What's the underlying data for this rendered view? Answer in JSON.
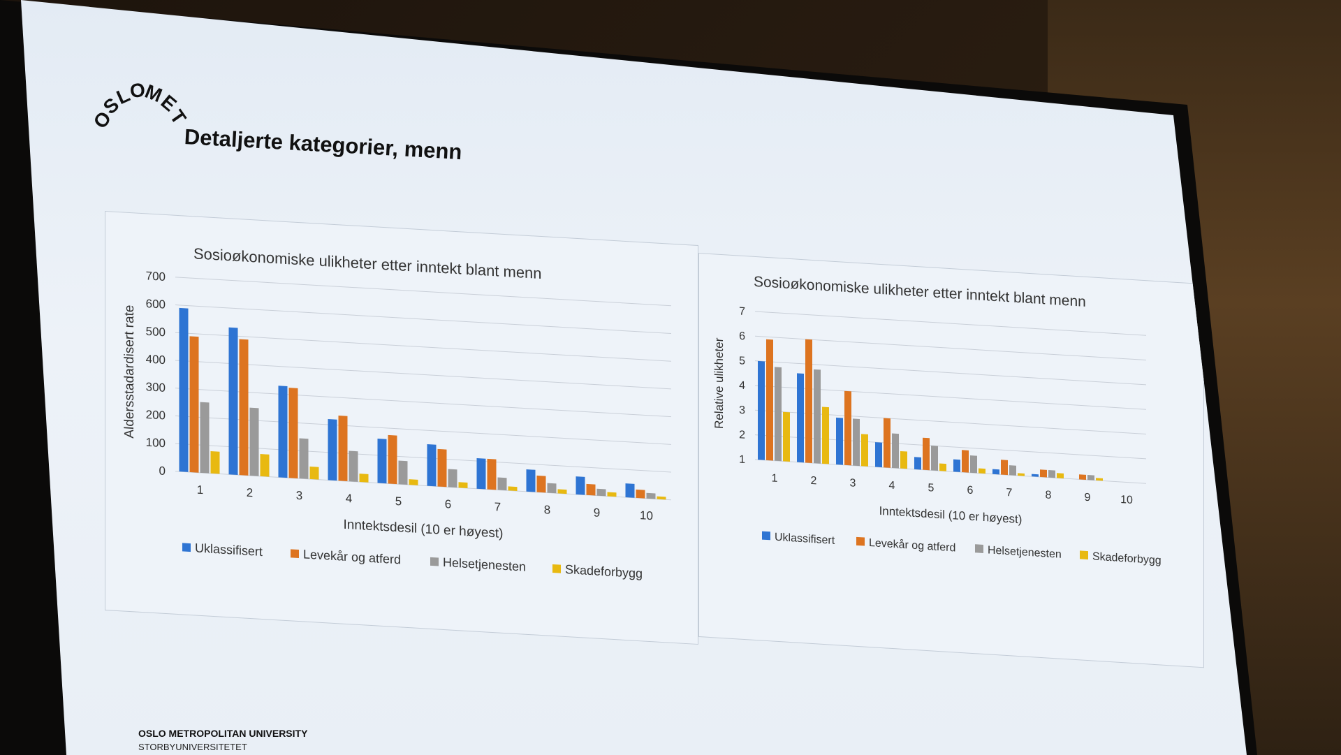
{
  "slide": {
    "title": "Detaljerte kategorier, menn",
    "logo_text": "OSLOMET",
    "footer_org": "OSLO METROPOLITAN UNIVERSITY",
    "footer_sub": "STORBYUNIVERSITETET"
  },
  "colors": {
    "uklassifisert": "#2e74d3",
    "levekar": "#dd7420",
    "helse": "#9a9a9a",
    "skade": "#e8b911"
  },
  "chart_data": [
    {
      "type": "bar",
      "title": "Sosioøkonomiske  ulikheter etter inntekt blant menn",
      "xlabel": "Inntektsdesil (10 er høyest)",
      "ylabel": "Aldersstadardisert rate",
      "categories": [
        "1",
        "2",
        "3",
        "4",
        "5",
        "6",
        "7",
        "8",
        "9",
        "10"
      ],
      "ylim": [
        0,
        700
      ],
      "yticks": [
        0,
        100,
        200,
        300,
        400,
        500,
        600,
        700
      ],
      "grid": true,
      "legend": "bottom",
      "series": [
        {
          "name": "Uklassifisert",
          "values": [
            590,
            530,
            330,
            220,
            160,
            150,
            110,
            80,
            65,
            50
          ]
        },
        {
          "name": "Levekår og atferd",
          "values": [
            490,
            490,
            325,
            235,
            175,
            135,
            110,
            60,
            40,
            30
          ]
        },
        {
          "name": "Helsetjenesten",
          "values": [
            255,
            245,
            145,
            110,
            85,
            65,
            45,
            35,
            25,
            20
          ]
        },
        {
          "name": "Skadeforbygg",
          "values": [
            80,
            80,
            45,
            30,
            20,
            20,
            15,
            15,
            15,
            10
          ]
        }
      ]
    },
    {
      "type": "bar",
      "title": "Sosioøkonomiske  ulikheter etter inntekt blant menn",
      "xlabel": "Inntektsdesil (10 er høyest)",
      "ylabel": "Relative ulikheter",
      "categories": [
        "1",
        "2",
        "3",
        "4",
        "5",
        "6",
        "7",
        "8",
        "9",
        "10"
      ],
      "ylim": [
        1,
        7
      ],
      "yticks": [
        1,
        2,
        3,
        4,
        5,
        6,
        7
      ],
      "grid": true,
      "legend": "bottom",
      "series": [
        {
          "name": "Uklassifisert",
          "values": [
            5.0,
            4.6,
            2.9,
            2.0,
            1.5,
            1.5,
            1.2,
            1.1,
            1.0,
            1.0
          ]
        },
        {
          "name": "Levekår og atferd",
          "values": [
            5.9,
            6.0,
            4.0,
            3.0,
            2.3,
            1.9,
            1.6,
            1.3,
            1.2,
            1.0
          ]
        },
        {
          "name": "Helsetjenesten",
          "values": [
            4.8,
            4.8,
            2.9,
            2.4,
            2.0,
            1.7,
            1.4,
            1.3,
            1.2,
            1.0
          ]
        },
        {
          "name": "Skadeforbygg",
          "values": [
            3.0,
            3.3,
            2.3,
            1.7,
            1.3,
            1.2,
            1.1,
            1.2,
            1.1,
            1.0
          ]
        }
      ]
    }
  ]
}
